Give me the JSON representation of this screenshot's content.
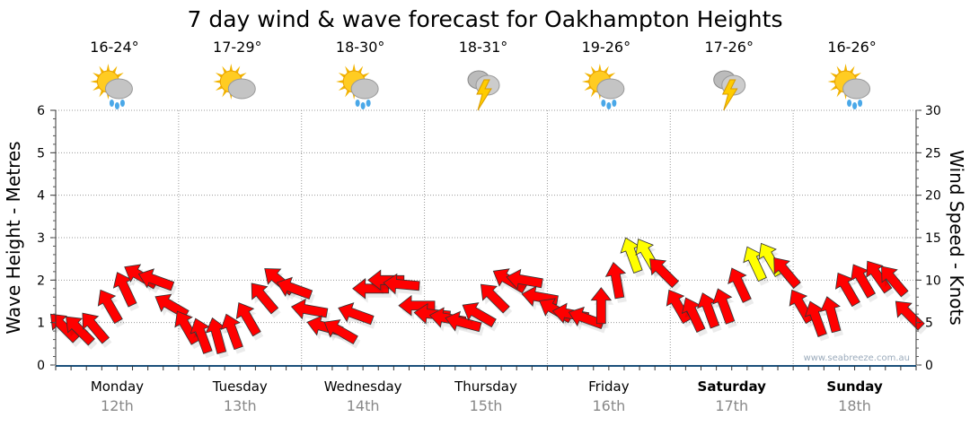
{
  "chart_data": {
    "type": "scatter",
    "title": "7 day wind & wave forecast for Oakhampton Heights",
    "ylabel": "Wave Height - Metres",
    "y2label": "Wind Speed - Knots",
    "ylim": [
      0,
      6
    ],
    "y2lim": [
      0,
      30
    ],
    "yticks": [
      "0",
      "1",
      "2",
      "3",
      "4",
      "5",
      "6"
    ],
    "y2ticks": [
      "0",
      "5",
      "10",
      "15",
      "20",
      "25",
      "30"
    ],
    "grid": true,
    "watermark": "www.seabreeze.com.au",
    "days": [
      {
        "name": "Monday",
        "date": "12th",
        "temp": "16-24°",
        "icon": "sun-cloud-rain",
        "bold": false
      },
      {
        "name": "Tuesday",
        "date": "13th",
        "temp": "17-29°",
        "icon": "sun-cloud",
        "bold": false
      },
      {
        "name": "Wednesday",
        "date": "14th",
        "temp": "18-30°",
        "icon": "sun-cloud-rain",
        "bold": false
      },
      {
        "name": "Thursday",
        "date": "15th",
        "temp": "18-31°",
        "icon": "storm",
        "bold": false
      },
      {
        "name": "Friday",
        "date": "16th",
        "temp": "19-26°",
        "icon": "sun-cloud-rain",
        "bold": false
      },
      {
        "name": "Saturday",
        "date": "17th",
        "temp": "17-26°",
        "icon": "storm",
        "bold": true
      },
      {
        "name": "Sunday",
        "date": "18th",
        "temp": "16-26°",
        "icon": "sun-cloud-rain",
        "bold": true
      }
    ],
    "wind_interval_hours": 3,
    "wind_speed_knots": [
      4.5,
      4.2,
      4.5,
      7,
      9,
      10.5,
      10,
      7,
      4.5,
      3.5,
      3.5,
      4,
      5.5,
      8,
      10,
      9,
      6.5,
      4.5,
      4,
      6,
      9,
      10,
      9.5,
      7,
      6,
      5.5,
      5,
      6,
      8,
      10,
      10,
      8,
      6.5,
      6,
      5.5,
      7,
      10,
      13,
      13,
      11,
      7,
      6,
      6.5,
      7,
      9.5,
      12,
      12.5,
      11,
      7,
      5.5,
      6,
      9,
      10,
      10.5,
      10,
      6
    ],
    "wind_arrow_bearing_deg": [
      315,
      315,
      320,
      330,
      335,
      300,
      290,
      300,
      330,
      340,
      345,
      340,
      330,
      320,
      310,
      290,
      280,
      285,
      300,
      290,
      270,
      270,
      275,
      270,
      275,
      280,
      285,
      300,
      315,
      300,
      280,
      280,
      300,
      280,
      290,
      0,
      350,
      340,
      330,
      315,
      330,
      335,
      340,
      340,
      335,
      335,
      330,
      320,
      330,
      340,
      345,
      330,
      330,
      325,
      320,
      315
    ],
    "strong_wind_threshold_knots": 12,
    "colors": {
      "normal": "#ff0000",
      "strong": "#ffff00",
      "axis": "#1a4f7a",
      "date": "#888888"
    }
  }
}
